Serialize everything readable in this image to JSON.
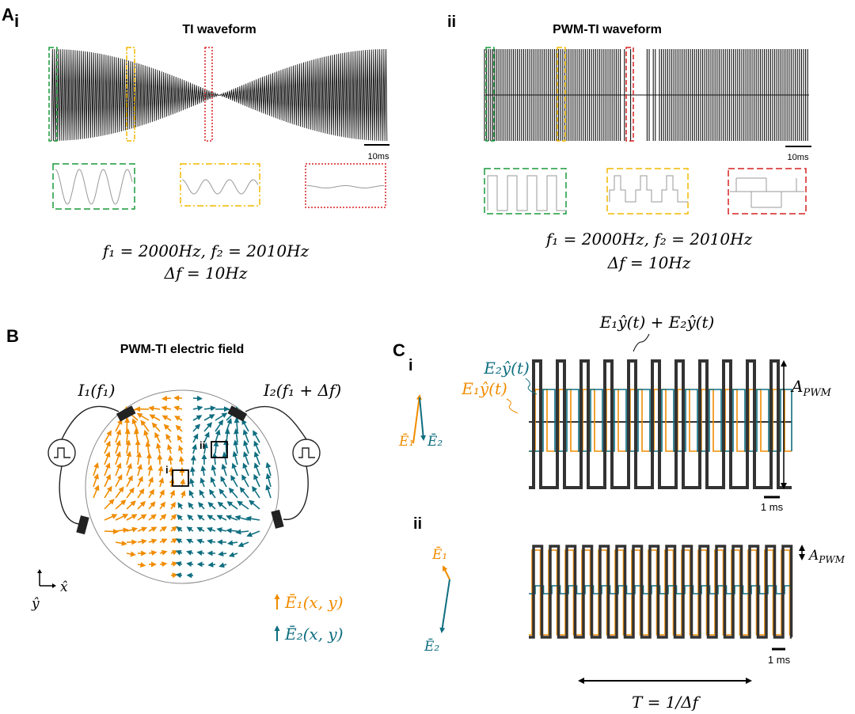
{
  "panel_a": {
    "letter": "A",
    "i": {
      "label": "i",
      "title": "TI waveform",
      "scale": "10ms",
      "formula1": "f₁ = 2000Hz,  f₂ = 2010Hz",
      "formula2": "Δf = 10Hz"
    },
    "ii": {
      "label": "ii",
      "title": "PWM-TI waveform",
      "scale": "10ms",
      "formula1": "f₁ = 2000Hz,  f₂ = 2010Hz",
      "formula2": "Δf = 10Hz"
    }
  },
  "panel_b": {
    "letter": "B",
    "title": "PWM-TI electric field",
    "source1": "I₁(f₁)",
    "source2": "I₂(f₁ + Δf)",
    "box_i": "i",
    "box_ii": "ii",
    "axis_x": "x̂",
    "axis_y": "ŷ",
    "legend1": "Ē₁(x, y)",
    "legend2": "Ē₂(x, y)"
  },
  "panel_c": {
    "letter": "C",
    "i": {
      "label": "i",
      "sum": "E₁ŷ(t) + E₂ŷ(t)",
      "e2": "E₂ŷ(t)",
      "e1": "E₁ŷ(t)",
      "amp": {
        "base": "A",
        "sub": "PWM"
      },
      "v1": "Ē₁",
      "v2": "Ē₂",
      "scale": "1 ms"
    },
    "ii": {
      "label": "ii",
      "amp": {
        "base": "A",
        "sub": "PWM"
      },
      "v1": "Ē₁",
      "v2": "Ē₂",
      "scale": "1 ms",
      "period": "T = 1/Δf"
    }
  }
}
